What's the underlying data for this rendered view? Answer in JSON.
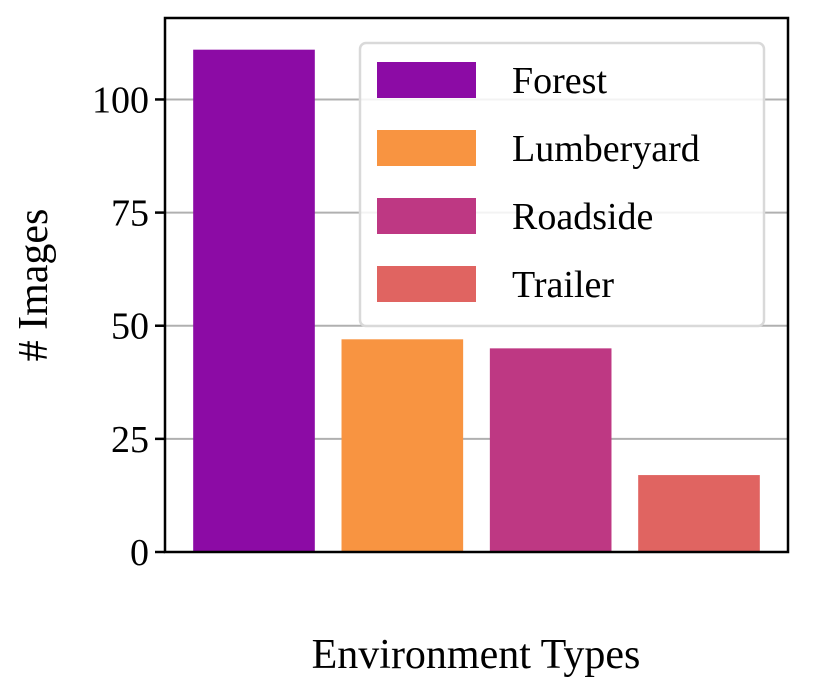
{
  "chart_data": {
    "type": "bar",
    "categories": [
      "Forest",
      "Lumberyard",
      "Roadside",
      "Trailer"
    ],
    "values": [
      111,
      47,
      45,
      17
    ],
    "colors": [
      "#8c0ba5",
      "#f89441",
      "#be3883",
      "#e06461"
    ],
    "xlabel": "Environment Types",
    "ylabel": "# Images",
    "ylim": [
      0,
      118
    ],
    "yticks": [
      0,
      25,
      50,
      75,
      100
    ],
    "grid": "horizontal",
    "legend": {
      "placement": "top-right",
      "entries": [
        "Forest",
        "Lumberyard",
        "Roadside",
        "Trailer"
      ]
    }
  }
}
